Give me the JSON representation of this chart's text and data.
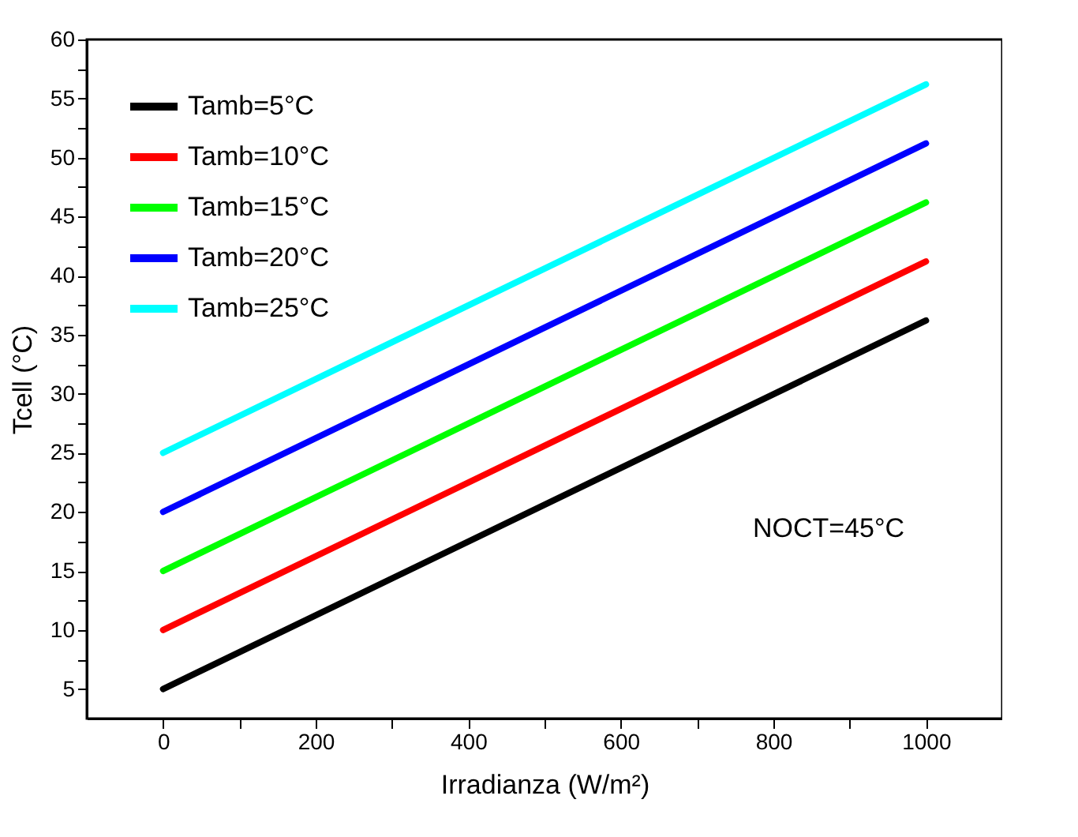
{
  "chart_data": {
    "type": "line",
    "xlabel": "Irradianza (W/m²)",
    "ylabel": "Tcell (°C)",
    "x": [
      0,
      1000
    ],
    "series": [
      {
        "name": "Tamb=5°C",
        "color": "#000000",
        "values": [
          5,
          36.2
        ]
      },
      {
        "name": "Tamb=10°C",
        "color": "#ff0000",
        "values": [
          10,
          41.2
        ]
      },
      {
        "name": "Tamb=15°C",
        "color": "#00ff00",
        "values": [
          15,
          46.2
        ]
      },
      {
        "name": "Tamb=20°C",
        "color": "#0000ff",
        "values": [
          20,
          51.2
        ]
      },
      {
        "name": "Tamb=25°C",
        "color": "#00ffff",
        "values": [
          25,
          56.2
        ]
      }
    ],
    "xlim": [
      -100,
      1100
    ],
    "xticks": [
      0,
      {
        "value": 100,
        "label": null
      },
      200,
      {
        "value": 300,
        "label": null
      },
      400,
      {
        "value": 500,
        "label": null
      },
      600,
      {
        "value": 700,
        "label": null
      },
      800,
      {
        "value": 900,
        "label": null
      },
      1000
    ],
    "ylim": [
      2.5,
      60
    ],
    "yticks": [
      5,
      {
        "value": 7.5,
        "label": null
      },
      10,
      {
        "value": 12.5,
        "label": null
      },
      15,
      {
        "value": 17.5,
        "label": null
      },
      20,
      {
        "value": 22.5,
        "label": null
      },
      25,
      {
        "value": 27.5,
        "label": null
      },
      30,
      {
        "value": 32.5,
        "label": null
      },
      35,
      {
        "value": 37.5,
        "label": null
      },
      40,
      {
        "value": 42.5,
        "label": null
      },
      45,
      {
        "value": 47.5,
        "label": null
      },
      50,
      {
        "value": 52.5,
        "label": null
      },
      55,
      {
        "value": 57.5,
        "label": null
      },
      60
    ],
    "annotations": [
      "NOCT=45°C"
    ],
    "grid": false,
    "legend": "top left",
    "marker": "none",
    "line_style": "solid"
  }
}
